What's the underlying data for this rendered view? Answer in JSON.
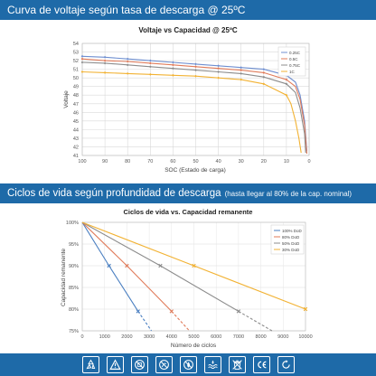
{
  "header1": {
    "title": "Curva de voltaje según tasa de descarga @ 25ºC"
  },
  "header2": {
    "title": "Ciclos de vida según profundidad de descarga",
    "subtitle": "(hasta llegar al 80% de la cap. nominal)"
  },
  "chart_data": [
    {
      "type": "line",
      "title": "Voltaje vs Capacidad @ 25ºC",
      "xlabel": "SOC (Estado de carga)",
      "ylabel": "Voltaje",
      "xlim": [
        100,
        0
      ],
      "ylim": [
        41,
        54
      ],
      "x_ticks": [
        100,
        90,
        80,
        70,
        60,
        50,
        40,
        30,
        20,
        10,
        0
      ],
      "y_ticks": [
        41,
        42,
        43,
        44,
        45,
        46,
        47,
        48,
        49,
        50,
        51,
        52,
        53,
        54
      ],
      "grid": true,
      "legend_position": "top-right",
      "series": [
        {
          "name": "0.25C",
          "color": "#6f8fd0",
          "marker": "diamond",
          "x": [
            100,
            90,
            80,
            70,
            60,
            50,
            40,
            30,
            20,
            10,
            6,
            4,
            2,
            1
          ],
          "y": [
            52.5,
            52.4,
            52.2,
            52.0,
            51.8,
            51.6,
            51.4,
            51.2,
            51.0,
            50.3,
            49.5,
            48.0,
            45.0,
            41.5
          ]
        },
        {
          "name": "0.5C",
          "color": "#e07b5a",
          "marker": "diamond",
          "x": [
            100,
            90,
            80,
            70,
            60,
            50,
            40,
            30,
            20,
            10,
            6,
            4,
            2,
            1
          ],
          "y": [
            52.2,
            52.0,
            51.9,
            51.7,
            51.5,
            51.3,
            51.1,
            50.9,
            50.6,
            49.8,
            49.0,
            47.5,
            44.5,
            41.2
          ]
        },
        {
          "name": "0.75C",
          "color": "#8c8c8c",
          "marker": "diamond",
          "x": [
            100,
            90,
            80,
            70,
            60,
            50,
            40,
            30,
            20,
            10,
            6,
            4,
            2,
            1.5
          ],
          "y": [
            51.8,
            51.7,
            51.5,
            51.3,
            51.1,
            50.9,
            50.7,
            50.5,
            50.1,
            49.3,
            48.3,
            46.5,
            43.5,
            41.3
          ]
        },
        {
          "name": "1C",
          "color": "#f2b233",
          "marker": "diamond",
          "x": [
            100,
            90,
            80,
            70,
            60,
            50,
            40,
            30,
            20,
            10,
            8,
            6,
            4.5,
            3.5
          ],
          "y": [
            50.7,
            50.6,
            50.5,
            50.4,
            50.3,
            50.2,
            50.0,
            49.8,
            49.3,
            48.0,
            47.0,
            45.0,
            43.0,
            41.3
          ]
        }
      ]
    },
    {
      "type": "line",
      "title": "Ciclos de vida vs. Capacidad remanente",
      "xlabel": "Número de ciclos",
      "ylabel": "Capacidad remanente",
      "xlim": [
        0,
        10000
      ],
      "ylim": [
        75,
        100
      ],
      "x_ticks": [
        0,
        1000,
        2000,
        3000,
        4000,
        5000,
        6000,
        7000,
        8000,
        9000,
        10000
      ],
      "y_ticks": [
        "75%",
        "80%",
        "85%",
        "90%",
        "95%",
        "100%"
      ],
      "y_tick_values": [
        75,
        80,
        85,
        90,
        95,
        100
      ],
      "grid": true,
      "legend_position": "top-right",
      "series": [
        {
          "name": "100% DoD",
          "color": "#4a7fc1",
          "x": [
            0,
            1200,
            2500
          ],
          "y": [
            100,
            90,
            79.5
          ],
          "extrapolated_to": [
            3100,
            75
          ]
        },
        {
          "name": "80% DoD",
          "color": "#e07b5a",
          "x": [
            0,
            2000,
            4000
          ],
          "y": [
            100,
            90,
            79.5
          ],
          "extrapolated_to": [
            4800,
            75
          ]
        },
        {
          "name": "50% DoD",
          "color": "#8c8c8c",
          "x": [
            0,
            3500,
            7000
          ],
          "y": [
            100,
            90,
            79.5
          ],
          "extrapolated_to": [
            8500,
            75
          ]
        },
        {
          "name": "30% DoD",
          "color": "#f2b233",
          "x": [
            0,
            5000,
            10000
          ],
          "y": [
            100,
            90,
            80
          ],
          "extrapolated_to": null
        }
      ]
    }
  ],
  "icons": [
    {
      "name": "recycle-icon"
    },
    {
      "name": "warning-icon"
    },
    {
      "name": "no-short-circuit-icon"
    },
    {
      "name": "no-disassemble-icon"
    },
    {
      "name": "no-fire-icon"
    },
    {
      "name": "no-water-icon"
    },
    {
      "name": "no-trash-icon"
    },
    {
      "name": "ce-mark-icon"
    },
    {
      "name": "cycle-icon"
    }
  ]
}
